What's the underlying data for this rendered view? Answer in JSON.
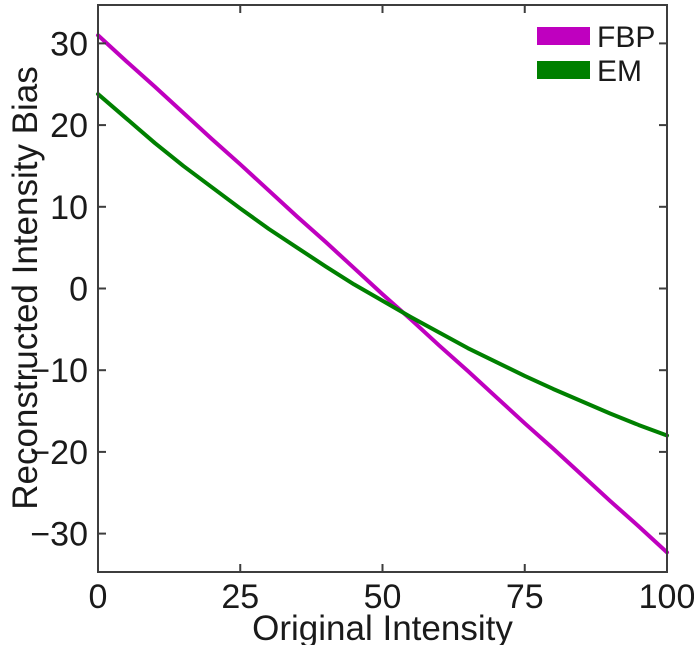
{
  "chart_data": {
    "type": "line",
    "title": "",
    "xlabel": "Original Intensity",
    "ylabel": "Reconstructed Intensity Bias",
    "xlim": [
      0,
      100
    ],
    "ylim": [
      -34.7,
      34.7
    ],
    "x_ticks": [
      0,
      25,
      50,
      75,
      100
    ],
    "y_ticks": [
      -30,
      -20,
      -10,
      0,
      10,
      20,
      30
    ],
    "grid": false,
    "box": true,
    "tick_direction": "in",
    "legend_position": "top-right",
    "x": [
      0,
      5,
      10,
      15,
      20,
      25,
      30,
      35,
      40,
      45,
      50,
      55,
      60,
      65,
      70,
      75,
      80,
      85,
      90,
      95,
      100
    ],
    "series": [
      {
        "name": "FBP",
        "color": "#bf00bf",
        "values": [
          31.0,
          27.8,
          24.7,
          21.5,
          18.3,
          15.2,
          12.0,
          8.8,
          5.7,
          2.5,
          -0.7,
          -3.8,
          -7.0,
          -10.1,
          -13.3,
          -16.5,
          -19.6,
          -22.8,
          -26.0,
          -29.1,
          -32.3
        ]
      },
      {
        "name": "EM",
        "color": "#008000",
        "values": [
          23.8,
          20.8,
          17.8,
          15.0,
          12.4,
          9.8,
          7.3,
          5.0,
          2.7,
          0.5,
          -1.5,
          -3.5,
          -5.4,
          -7.3,
          -9.0,
          -10.7,
          -12.3,
          -13.8,
          -15.3,
          -16.7,
          -18.0
        ]
      }
    ]
  }
}
